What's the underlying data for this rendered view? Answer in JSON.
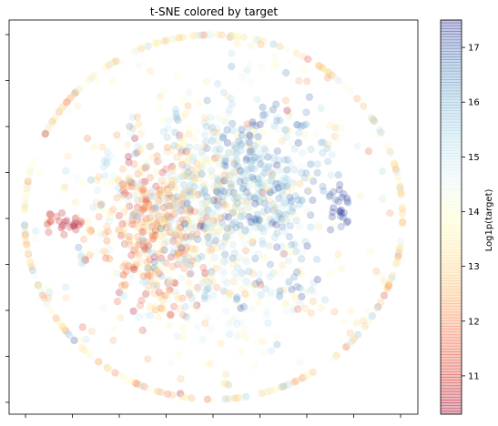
{
  "chart_data": {
    "type": "scatter",
    "title": "t-SNE colored by target",
    "xlabel": "",
    "ylabel": "",
    "x_tick_labels": "hidden",
    "y_tick_labels": "hidden",
    "grid": false,
    "marker_alpha": 0.25,
    "colormap": "RdYlBu",
    "colorbar": {
      "label": "Log1p(target)",
      "range": [
        10.3,
        17.5
      ],
      "ticks": [
        11,
        12,
        13,
        14,
        15,
        16,
        17
      ],
      "tick_labels": [
        "11",
        "12",
        "13",
        "14",
        "15",
        "16",
        "17"
      ]
    },
    "points_note": "approximate reconstruction of embedding clusters",
    "clusters": [
      {
        "cx": -12,
        "cy": -2,
        "sx": 6,
        "sy": 8,
        "n": 380,
        "value": 12.3
      },
      {
        "cx": -3,
        "cy": 4,
        "sx": 7,
        "sy": 9,
        "n": 420,
        "value": 14.4
      },
      {
        "cx": 9,
        "cy": 6,
        "sx": 6,
        "sy": 8,
        "n": 360,
        "value": 15.6
      },
      {
        "cx": 4,
        "cy": -14,
        "sx": 10,
        "sy": 4,
        "n": 110,
        "value": 14.8
      },
      {
        "cx": 0,
        "cy": 0,
        "sx": 35,
        "sy": 34,
        "n": 520,
        "value": 13.6
      },
      {
        "cx": 25,
        "cy": 0,
        "sx": 1.2,
        "sy": 1.4,
        "n": 14,
        "value": 17.2
      },
      {
        "cx": 24,
        "cy": 4,
        "sx": 1.0,
        "sy": 0.8,
        "n": 10,
        "value": 17.0
      },
      {
        "cx": -28,
        "cy": -2,
        "sx": 1.5,
        "sy": 1.2,
        "n": 16,
        "value": 10.6
      },
      {
        "cx": -32,
        "cy": 0,
        "sx": 0.8,
        "sy": 0.8,
        "n": 6,
        "value": 10.8
      },
      {
        "cx": -21,
        "cy": 11,
        "sx": 0.5,
        "sy": 1.6,
        "n": 7,
        "value": 15.2
      },
      {
        "cx": -7,
        "cy": 20,
        "sx": 0.4,
        "sy": 1.2,
        "n": 5,
        "value": 16.0
      },
      {
        "cx": 17,
        "cy": 19,
        "sx": 1.2,
        "sy": 0.8,
        "n": 5,
        "value": 16.3
      },
      {
        "cx": 22,
        "cy": 14,
        "sx": 1.0,
        "sy": 1.0,
        "n": 6,
        "value": 15.8
      },
      {
        "cx": 5,
        "cy": -22,
        "sx": 1.5,
        "sy": 1.2,
        "n": 8,
        "value": 15.0
      },
      {
        "cx": 16,
        "cy": -12,
        "sx": 0.8,
        "sy": 1.2,
        "n": 5,
        "value": 16.5
      },
      {
        "cx": -26,
        "cy": -8,
        "sx": 0.6,
        "sy": 1.0,
        "n": 4,
        "value": 15.2
      },
      {
        "cx": -10,
        "cy": -19,
        "sx": 1.5,
        "sy": 1.0,
        "n": 6,
        "value": 13.2
      }
    ],
    "xlim": [
      -40,
      40
    ],
    "ylim": [
      -40,
      40
    ]
  }
}
